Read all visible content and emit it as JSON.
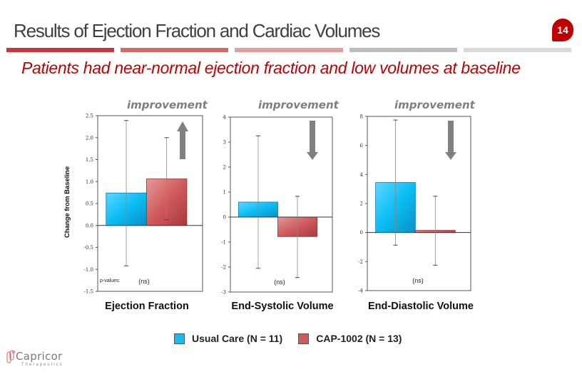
{
  "slide": {
    "title": "Results of Ejection Fraction and Cardiac Volumes",
    "page_number": "14",
    "subtitle": "Patients had near-normal ejection  fraction and low volumes at baseline",
    "stripe_colors": [
      "#c0393b",
      "#d06a6c",
      "#e0a0a1",
      "#bdbdbd",
      "#d9d9d9"
    ],
    "accent_color": "#c00000"
  },
  "logo": {
    "name": "Capricor",
    "tagline": "Therapeutics"
  },
  "chart_data": [
    {
      "type": "bar",
      "title": "Ejection Fraction",
      "ylabel": "Change from Baseline",
      "annotation": "improvement",
      "direction": "up",
      "pvalue_label": "p-values:",
      "pvalue": "(ns)",
      "ylim": [
        -1.5,
        2.5
      ],
      "yticks": [
        "-1.5",
        "-1.0",
        "-0.5",
        "0.0",
        "0.5",
        "1.0",
        "1.5",
        "2.0",
        "2.5"
      ],
      "ytick_values": [
        -1.5,
        -1.0,
        -0.5,
        0.0,
        0.5,
        1.0,
        1.5,
        2.0,
        2.5
      ],
      "categories": [
        "Usual Care (N = 11)",
        "CAP-1002 (N = 13)"
      ],
      "values": [
        0.74,
        1.06
      ],
      "error_low": [
        -0.92,
        0.13
      ],
      "error_high": [
        2.39,
        2.0
      ]
    },
    {
      "type": "bar",
      "title": "End-Systolic Volume",
      "ylabel": "",
      "annotation": "improvement",
      "direction": "down",
      "pvalue_label": "",
      "pvalue": "(ns)",
      "ylim": [
        -3,
        4
      ],
      "yticks": [
        "-3",
        "-2",
        "-1",
        "0",
        "1",
        "2",
        "3",
        "4"
      ],
      "ytick_values": [
        -3,
        -2,
        -1,
        0,
        1,
        2,
        3,
        4
      ],
      "categories": [
        "Usual Care (N = 11)",
        "CAP-1002 (N = 13)"
      ],
      "values": [
        0.6,
        -0.78
      ],
      "error_low": [
        -2.05,
        -2.42
      ],
      "error_high": [
        3.25,
        0.83
      ]
    },
    {
      "type": "bar",
      "title": "End-Diastolic Volume",
      "ylabel": "",
      "annotation": "improvement",
      "direction": "down",
      "pvalue_label": "",
      "pvalue": "(ns)",
      "ylim": [
        -4,
        8
      ],
      "yticks": [
        "-4",
        "-2",
        "0",
        "2",
        "4",
        "6",
        "8"
      ],
      "ytick_values": [
        -4,
        -2,
        0,
        2,
        4,
        6,
        8
      ],
      "categories": [
        "Usual Care (N = 11)",
        "CAP-1002 (N = 13)"
      ],
      "values": [
        3.45,
        0.15
      ],
      "error_low": [
        -0.87,
        -2.25
      ],
      "error_high": [
        7.75,
        2.5
      ]
    }
  ],
  "legend": {
    "items": [
      {
        "label": "Usual Care (N = 11)",
        "color": "#1fb8ee"
      },
      {
        "label": "CAP-1002 (N = 13)",
        "color": "#cd5c5e"
      }
    ]
  }
}
